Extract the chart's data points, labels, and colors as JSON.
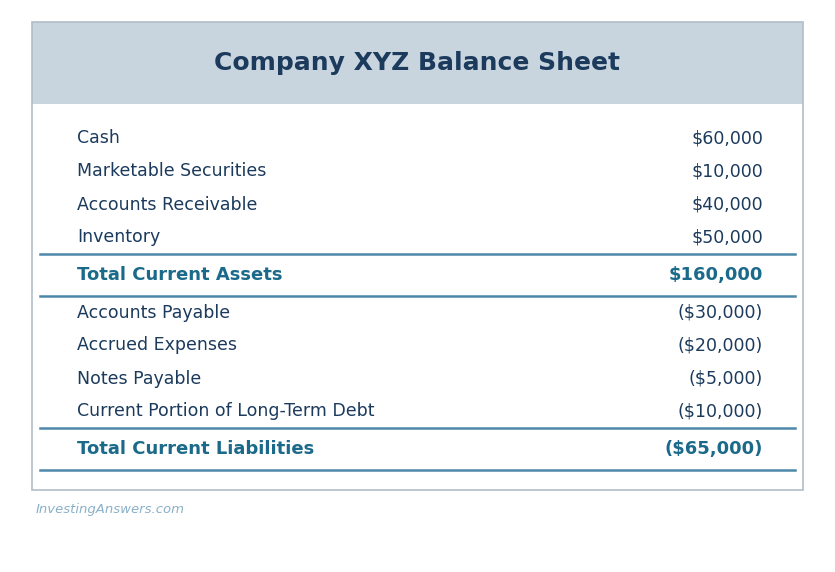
{
  "title": "Company XYZ Balance Sheet",
  "title_color": "#1b3a5c",
  "header_bg": "#c8d4de",
  "table_bg": "#ffffff",
  "outer_border_color": "#b0bec8",
  "divider_color": "#4d88aa",
  "text_color": "#1b3a5c",
  "total_text_color": "#1b6a8a",
  "footer_text": "InvestingAnswers.com",
  "footer_color": "#8ab0c8",
  "rows": [
    {
      "label": "Cash",
      "value": "$60,000",
      "bold": false,
      "is_total": false
    },
    {
      "label": "Marketable Securities",
      "value": "$10,000",
      "bold": false,
      "is_total": false
    },
    {
      "label": "Accounts Receivable",
      "value": "$40,000",
      "bold": false,
      "is_total": false
    },
    {
      "label": "Inventory",
      "value": "$50,000",
      "bold": false,
      "is_total": false
    },
    {
      "label": "Total Current Assets",
      "value": "$160,000",
      "bold": true,
      "is_total": true
    },
    {
      "label": "Accounts Payable",
      "value": "($30,000)",
      "bold": false,
      "is_total": false
    },
    {
      "label": "Accrued Expenses",
      "value": "($20,000)",
      "bold": false,
      "is_total": false
    },
    {
      "label": "Notes Payable",
      "value": "($5,000)",
      "bold": false,
      "is_total": false
    },
    {
      "label": "Current Portion of Long-Term Debt",
      "value": "($10,000)",
      "bold": false,
      "is_total": false
    },
    {
      "label": "Total Current Liabilities",
      "value": "($65,000)",
      "bold": true,
      "is_total": true
    }
  ],
  "figsize": [
    8.35,
    5.72
  ],
  "dpi": 100
}
